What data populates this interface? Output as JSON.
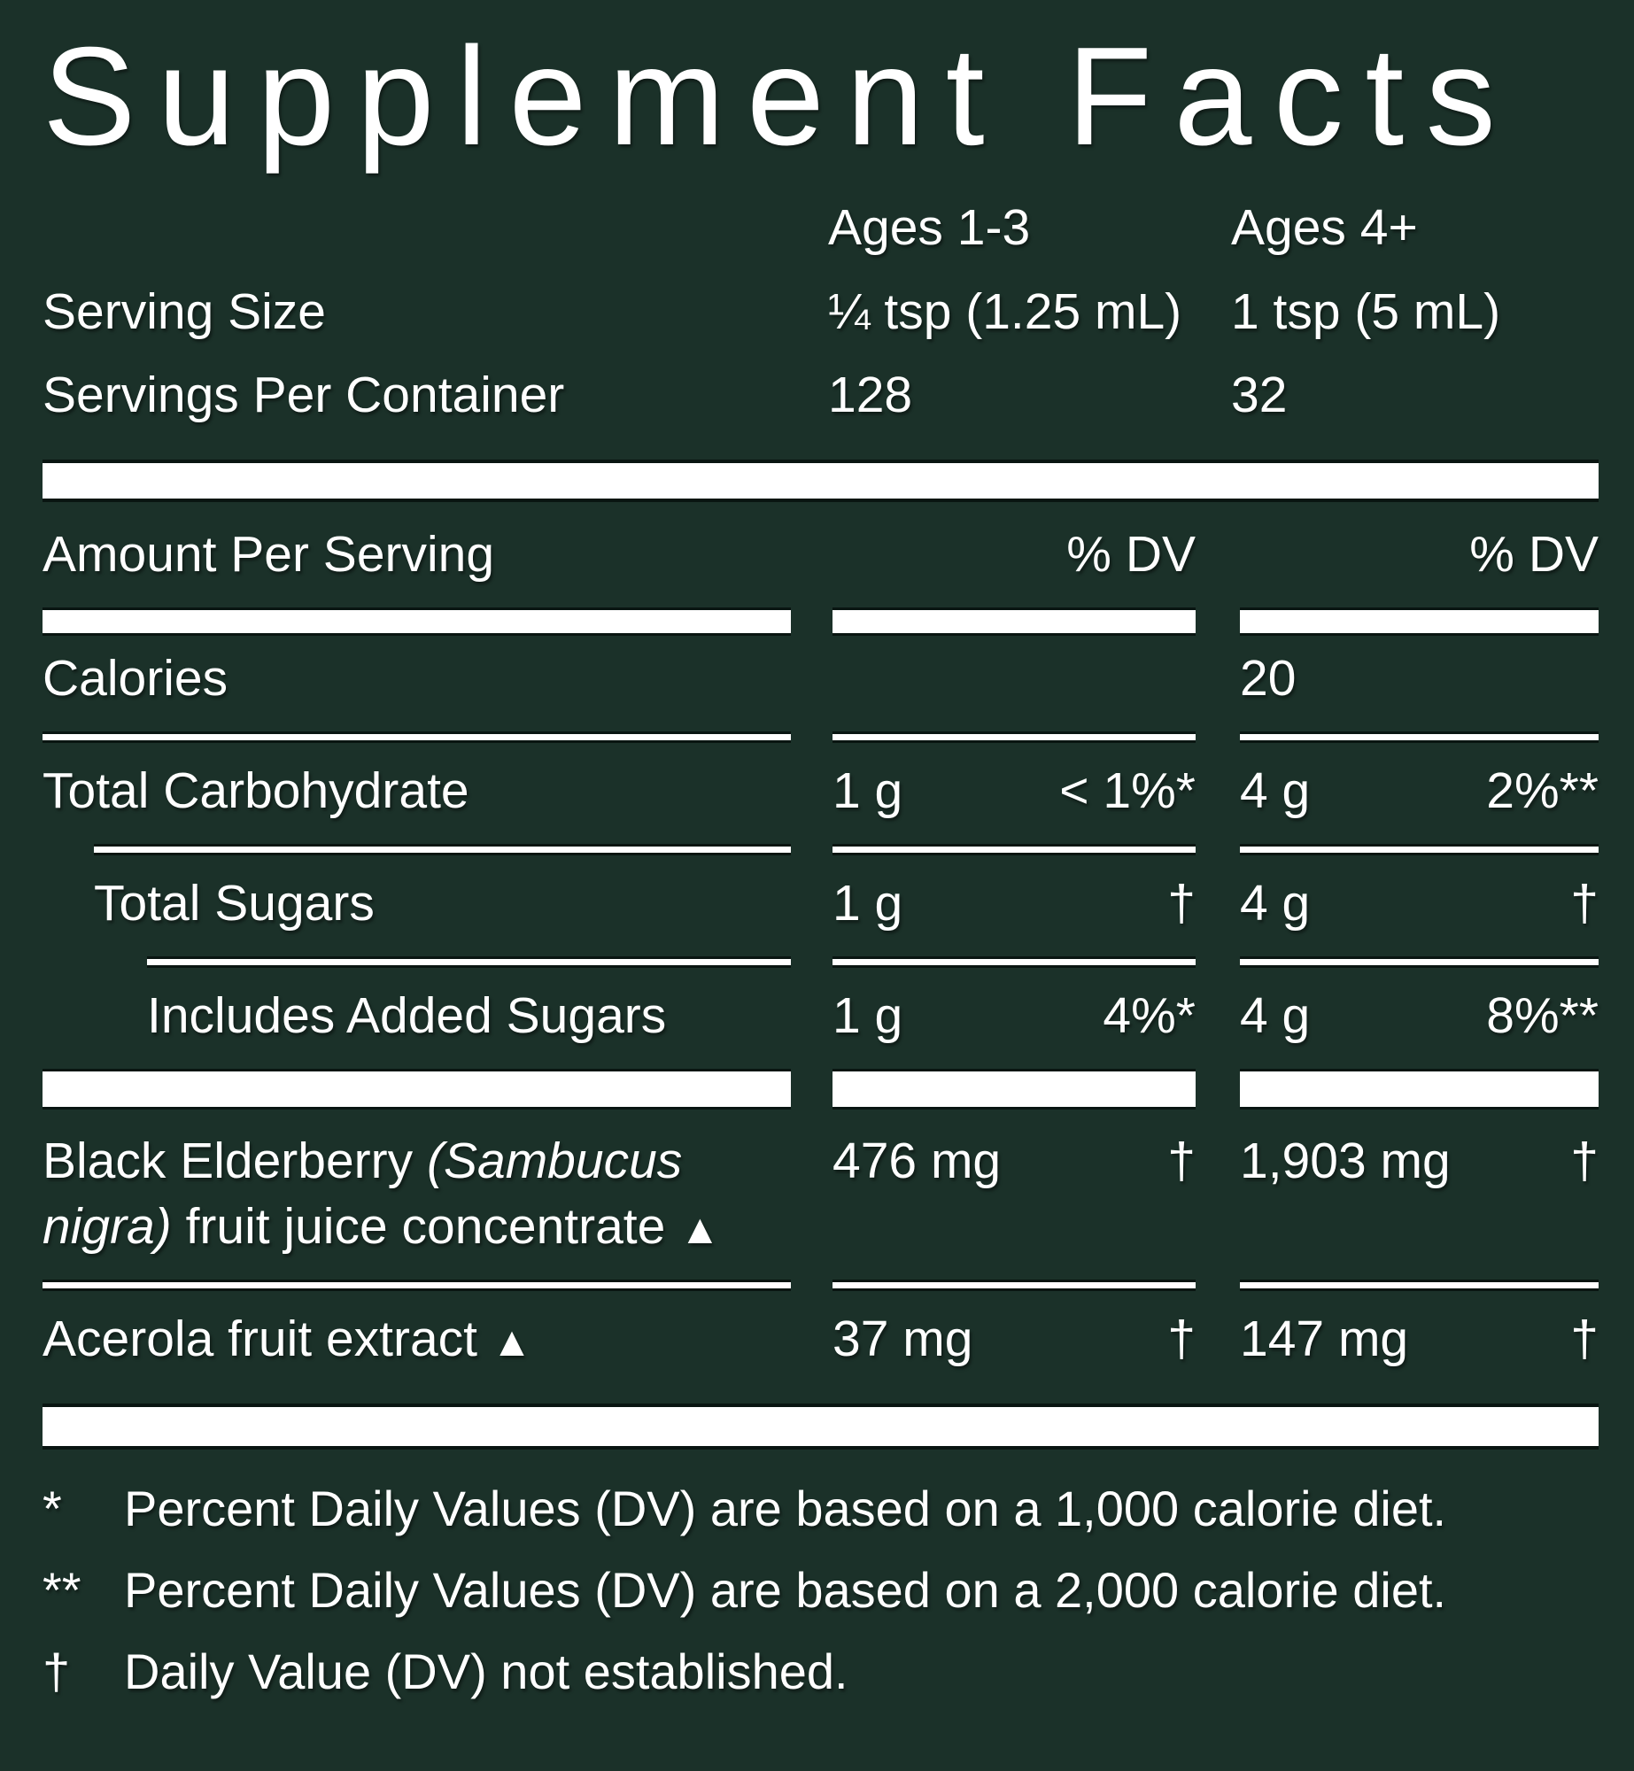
{
  "colors": {
    "background": "#1b3129",
    "text": "#ffffff"
  },
  "title": "Supplement Facts",
  "age_columns": {
    "col1": "Ages 1-3",
    "col2": "Ages 4+"
  },
  "serving_rows": [
    {
      "label": "Serving Size",
      "col1": "¼ tsp (1.25 mL)",
      "col2": "1 tsp (5 mL)"
    },
    {
      "label": "Servings Per Container",
      "col1": "128",
      "col2": "32"
    }
  ],
  "table_header": {
    "amount_per_serving": "Amount Per Serving",
    "dv_col1": "% DV",
    "dv_col2": "% DV"
  },
  "nutrient_rows": [
    {
      "label": [
        {
          "text": "Calories"
        }
      ],
      "indent": 0,
      "amount1": "",
      "dv1": "",
      "amount2": "20",
      "dv2": "",
      "rule_above": {
        "style": "bar-medium",
        "indent": 0
      }
    },
    {
      "label": [
        {
          "text": "Total Carbohydrate"
        }
      ],
      "indent": 0,
      "amount1": "1 g",
      "dv1": "< 1%*",
      "amount2": "4 g",
      "dv2": "2%**",
      "rule_above": {
        "style": "line",
        "indent": 0
      }
    },
    {
      "label": [
        {
          "text": "Total Sugars"
        }
      ],
      "indent": 1,
      "amount1": "1 g",
      "dv1": "†",
      "amount2": "4 g",
      "dv2": "†",
      "rule_above": {
        "style": "line",
        "indent": 1
      }
    },
    {
      "label": [
        {
          "text": "Includes Added Sugars"
        }
      ],
      "indent": 2,
      "amount1": "1 g",
      "dv1": "4%*",
      "amount2": "4 g",
      "dv2": "8%**",
      "rule_above": {
        "style": "line",
        "indent": 2
      }
    },
    {
      "label": [
        {
          "text": "Black Elderberry "
        },
        {
          "text": "(Sambucus nigra)",
          "italic": true
        },
        {
          "text": " fruit juice concentrate "
        },
        {
          "text": "▲",
          "icon": "triangle"
        }
      ],
      "indent": 0,
      "amount1": "476 mg",
      "dv1": "†",
      "amount2": "1,903 mg",
      "dv2": "†",
      "rule_above": {
        "style": "bar-thick",
        "indent": 0
      }
    },
    {
      "label": [
        {
          "text": "Acerola fruit extract "
        },
        {
          "text": "▲",
          "icon": "triangle"
        }
      ],
      "indent": 0,
      "amount1": "37 mg",
      "dv1": "†",
      "amount2": "147 mg",
      "dv2": "†",
      "rule_above": {
        "style": "line",
        "indent": 0
      }
    }
  ],
  "footnotes": [
    {
      "marker": "*",
      "text": "Percent Daily Values (DV) are based on a 1,000 calorie diet."
    },
    {
      "marker": "**",
      "text": "Percent Daily Values (DV) are based on a 2,000 calorie diet."
    },
    {
      "marker": "†",
      "text": "Daily Value (DV) not established."
    }
  ]
}
